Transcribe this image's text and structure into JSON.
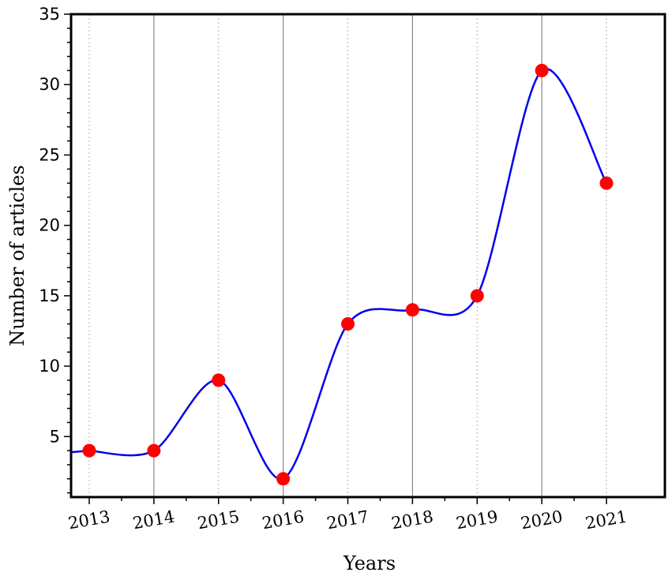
{
  "chart_data": {
    "type": "line",
    "title": "",
    "xlabel": "Years",
    "ylabel": "Number of articles",
    "categories": [
      "2013",
      "2014",
      "2015",
      "2016",
      "2017",
      "2018",
      "2019",
      "2020",
      "2021"
    ],
    "series": [
      {
        "values": [
          4,
          4,
          9,
          2,
          13,
          14,
          15,
          31,
          23
        ],
        "line_color": "#0000ee",
        "marker_color": "#ff0000"
      }
    ],
    "ylim": [
      0.7,
      35
    ],
    "yticks": [
      "5",
      "10",
      "15",
      "20",
      "25",
      "30",
      "35"
    ],
    "grid": "vertical",
    "smooth": true,
    "legend": "none"
  }
}
